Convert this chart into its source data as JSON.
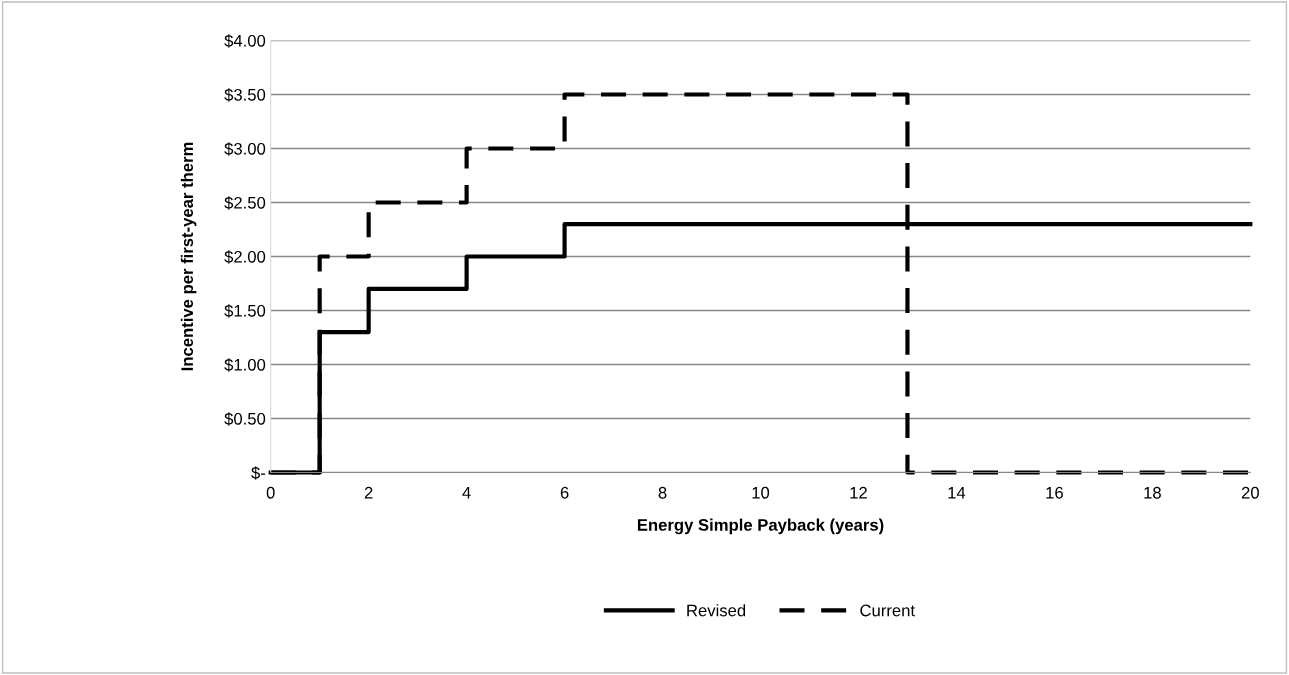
{
  "chart_data": {
    "type": "step",
    "xlabel": "Energy Simple Payback (years)",
    "ylabel": "Incentive per first-year therm",
    "series": [
      {
        "name": "Revised",
        "color": "#000000",
        "line_style": "solid",
        "x": [
          0,
          1,
          2,
          4,
          6,
          20
        ],
        "values": [
          0,
          1.3,
          1.7,
          2.0,
          2.3,
          2.3
        ]
      },
      {
        "name": "Current",
        "color": "#000000",
        "line_style": "dashed",
        "x": [
          0,
          1,
          2,
          4,
          6,
          13,
          20
        ],
        "values": [
          0,
          2.0,
          2.5,
          3.0,
          3.5,
          0,
          0
        ]
      }
    ],
    "xlim": [
      0,
      20
    ],
    "xticks": [
      0,
      2,
      4,
      6,
      8,
      10,
      12,
      14,
      16,
      18,
      20
    ],
    "ylim": [
      0,
      4
    ],
    "yticks": [
      {
        "value": 0,
        "label": "$-"
      },
      {
        "value": 0.5,
        "label": "$0.50"
      },
      {
        "value": 1,
        "label": "$1.00"
      },
      {
        "value": 1.5,
        "label": "$1.50"
      },
      {
        "value": 2,
        "label": "$2.00"
      },
      {
        "value": 2.5,
        "label": "$2.50"
      },
      {
        "value": 3,
        "label": "$3.00"
      },
      {
        "value": 3.5,
        "label": "$3.50"
      },
      {
        "value": 4,
        "label": "$4.00"
      }
    ],
    "grid": "y",
    "legend": "bottom",
    "marker": "none"
  }
}
